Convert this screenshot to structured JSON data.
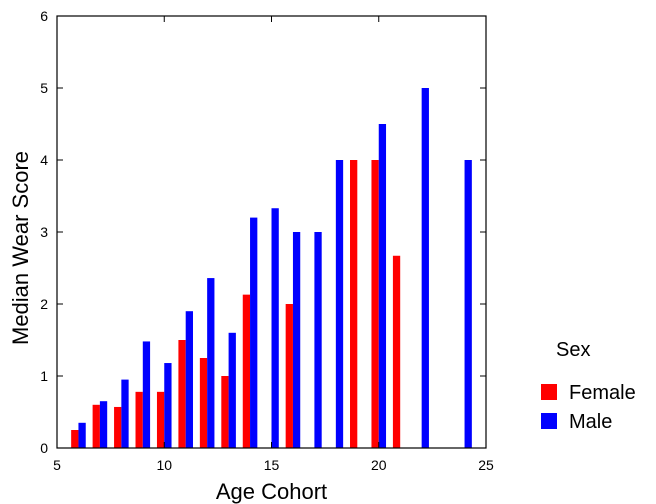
{
  "chart_data": {
    "type": "bar",
    "xlabel": "Age Cohort",
    "ylabel": "Median Wear Score",
    "xlim": [
      5,
      25
    ],
    "ylim": [
      0,
      6
    ],
    "xticks": [
      5,
      10,
      15,
      20,
      25
    ],
    "yticks": [
      0,
      1,
      2,
      3,
      4,
      5,
      6
    ],
    "grid": false,
    "legend": {
      "title": "Sex",
      "position": "right"
    },
    "series": [
      {
        "name": "Female",
        "color": "#ff0000",
        "points": [
          {
            "x": 6,
            "y": 0.25
          },
          {
            "x": 7,
            "y": 0.6
          },
          {
            "x": 8,
            "y": 0.57
          },
          {
            "x": 9,
            "y": 0.78
          },
          {
            "x": 10,
            "y": 0.78
          },
          {
            "x": 11,
            "y": 1.5
          },
          {
            "x": 12,
            "y": 1.25
          },
          {
            "x": 13,
            "y": 1.0
          },
          {
            "x": 14,
            "y": 2.13
          },
          {
            "x": 16,
            "y": 2.0
          },
          {
            "x": 19,
            "y": 4.0
          },
          {
            "x": 20,
            "y": 4.0
          },
          {
            "x": 21,
            "y": 2.67
          }
        ]
      },
      {
        "name": "Male",
        "color": "#0000ff",
        "points": [
          {
            "x": 6,
            "y": 0.35
          },
          {
            "x": 7,
            "y": 0.65
          },
          {
            "x": 8,
            "y": 0.95
          },
          {
            "x": 9,
            "y": 1.48
          },
          {
            "x": 10,
            "y": 1.18
          },
          {
            "x": 11,
            "y": 1.9
          },
          {
            "x": 12,
            "y": 2.36
          },
          {
            "x": 13,
            "y": 1.6
          },
          {
            "x": 14,
            "y": 3.2
          },
          {
            "x": 15,
            "y": 3.33
          },
          {
            "x": 16,
            "y": 3.0
          },
          {
            "x": 17,
            "y": 3.0
          },
          {
            "x": 18,
            "y": 4.0
          },
          {
            "x": 20,
            "y": 4.5
          },
          {
            "x": 22,
            "y": 5.0
          },
          {
            "x": 24,
            "y": 4.0
          }
        ]
      }
    ]
  }
}
